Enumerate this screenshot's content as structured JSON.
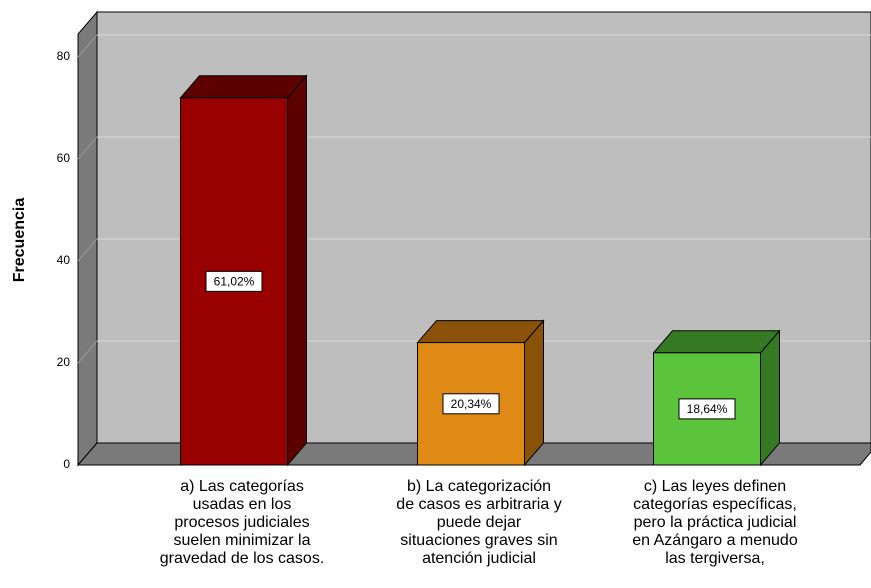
{
  "chart_data": {
    "type": "bar3d",
    "y_label": "Frecuencia",
    "categories": [
      "a) Las categorías\nusadas en los\nprocesos judiciales\nsuelen minimizar la\ngravedad de los casos.",
      "b) La categorización\nde casos es arbitraria y\npuede dejar\nsituaciones graves sin\natención judicial",
      "c) Las leyes definen\ncategorías específicas,\npero la práctica judicial\nen Azángaro a menudo\nlas tergiversa,"
    ],
    "values": [
      72,
      24,
      22
    ],
    "colors": [
      "#990000",
      "#e08a16",
      "#5cc43c"
    ],
    "side_colors": [
      "#5c0000",
      "#8a5208",
      "#357a22"
    ],
    "percentages": [
      61.02,
      20.34,
      18.64
    ],
    "percentage_labels": [
      "61,02%",
      "20,34%",
      "18,64%"
    ],
    "ylim": [
      0,
      84.5
    ],
    "yticks": [
      0,
      20,
      40,
      60,
      80
    ],
    "grid": true
  }
}
